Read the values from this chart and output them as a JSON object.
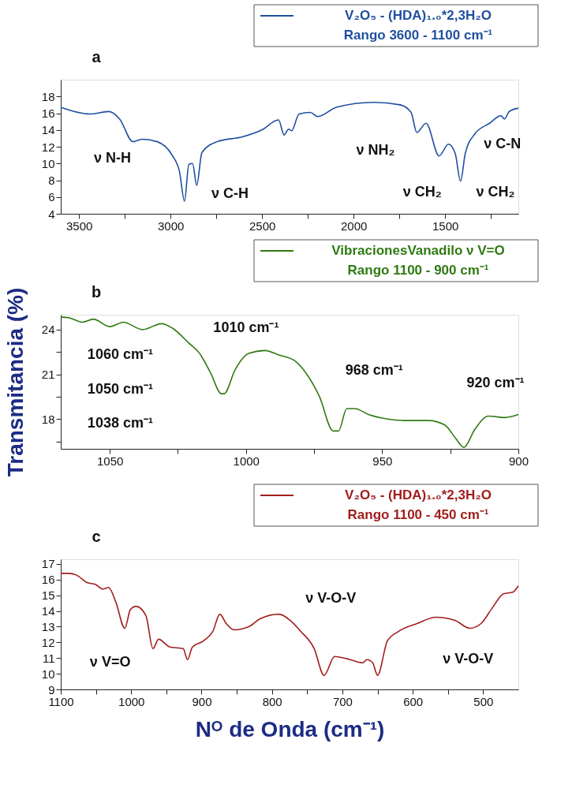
{
  "chart_data": [
    {
      "type": "line",
      "title": "a",
      "legend": "top right",
      "x": [
        3600,
        3441,
        3339,
        3278,
        3206,
        3155,
        3073,
        2992,
        2951,
        2924,
        2900,
        2880,
        2857,
        2829,
        2747,
        2604,
        2502,
        2410,
        2380,
        2355,
        2339,
        2298,
        2237,
        2196,
        2094,
        1890,
        1747,
        1686,
        1655,
        1604,
        1533,
        1482,
        1445,
        1416,
        1390,
        1339,
        1257,
        1196,
        1176,
        1150,
        1100
      ],
      "series": [
        {
          "name": "V₂O₅ - (HDA)₁.₀*2,3H₂O",
          "color": "#1f4f9f",
          "values": [
            16.7,
            15.9,
            16.2,
            15.3,
            12.6,
            12.9,
            12.6,
            11.0,
            9.0,
            5.5,
            9.9,
            10.0,
            7.4,
            11.3,
            12.6,
            13.2,
            14.0,
            15.2,
            13.4,
            14.1,
            13.9,
            15.9,
            16.1,
            15.6,
            16.7,
            17.3,
            17.0,
            16.1,
            13.7,
            14.8,
            10.9,
            12.3,
            11.2,
            7.9,
            11.2,
            13.5,
            14.8,
            15.7,
            15.3,
            16.2,
            16.6
          ]
        }
      ],
      "xlim": [
        3600,
        1100
      ],
      "xticks": [
        3500,
        {
          "value": 3250,
          "label": null
        },
        3000,
        {
          "value": 2750,
          "label": null
        },
        2500,
        {
          "value": 2250,
          "label": null
        },
        2000,
        {
          "value": 1750,
          "label": null
        },
        1500,
        {
          "value": 1250,
          "label": null
        }
      ],
      "ylim": [
        4,
        20
      ],
      "yticks": [
        4,
        6,
        8,
        10,
        12,
        14,
        16,
        18
      ],
      "annotations": [
        "Rango 3600 - 1100 cm⁻¹",
        "ν N-H",
        "ν C-H",
        "ν NH₂",
        "ν CH₂",
        "ν CH₂",
        "ν C-N"
      ]
    },
    {
      "type": "line",
      "title": "b",
      "legend": "top right",
      "ylabel": "Transmitancia (%)",
      "x": [
        1068,
        1065,
        1060,
        1056,
        1050,
        1045,
        1038,
        1031,
        1027,
        1021,
        1017,
        1013,
        1009,
        1008,
        1004,
        999,
        993,
        988,
        982,
        978,
        973,
        968,
        966,
        963,
        960,
        955,
        948,
        941,
        933,
        927,
        923,
        920,
        916,
        911,
        905,
        900
      ],
      "series": [
        {
          "name": "VibracionesVanadilo ν V=O",
          "color": "#2f7a12",
          "values": [
            24.85,
            24.8,
            24.5,
            24.7,
            24.2,
            24.5,
            24.0,
            24.4,
            24.1,
            23.1,
            22.4,
            21.1,
            19.7,
            19.7,
            21.3,
            22.4,
            22.6,
            22.3,
            21.9,
            21.1,
            19.5,
            17.2,
            17.2,
            18.7,
            18.7,
            18.3,
            18.0,
            17.9,
            17.9,
            17.6,
            16.7,
            16.1,
            17.3,
            18.2,
            18.1,
            18.3
          ]
        }
      ],
      "xlim": [
        1068,
        900
      ],
      "xticks": [
        1050,
        {
          "value": 1025,
          "label": null
        },
        1000,
        {
          "value": 975,
          "label": null
        },
        950,
        {
          "value": 925,
          "label": null
        },
        900
      ],
      "ylim": [
        16,
        25
      ],
      "yticks": [
        {
          "value": 16.5,
          "label": null
        },
        18,
        {
          "value": 19.5,
          "label": null
        },
        21,
        {
          "value": 22.5,
          "label": null
        },
        24
      ],
      "annotations": [
        "Rango 1100 - 900 cm⁻¹",
        "1010 cm⁻¹",
        "1060 cm⁻¹",
        "1050 cm⁻¹",
        "1038 cm⁻¹",
        "968 cm⁻¹",
        "920 cm⁻¹"
      ]
    },
    {
      "type": "line",
      "title": "c",
      "legend": "top right",
      "xlabel": "Nᴼ de Onda (cm⁻¹)",
      "x": [
        1100,
        1088,
        1078,
        1062,
        1051,
        1040,
        1032,
        1022,
        1009,
        1001,
        993,
        979,
        969,
        961,
        945,
        926,
        920,
        913,
        897,
        884,
        874,
        865,
        854,
        833,
        817,
        790,
        774,
        759,
        740,
        726,
        711,
        689,
        671,
        665,
        657,
        650,
        636,
        620,
        594,
        567,
        540,
        519,
        503,
        487,
        471,
        458,
        450
      ],
      "series": [
        {
          "name": "V₂O₅ - (HDA)₁.₀*2,3H₂O",
          "color": "#a11d1d",
          "values": [
            16.4,
            16.4,
            16.3,
            15.8,
            15.7,
            15.4,
            15.5,
            14.6,
            12.9,
            14.1,
            14.3,
            13.7,
            11.6,
            12.2,
            11.7,
            11.6,
            10.9,
            11.7,
            12.1,
            12.7,
            13.8,
            13.2,
            12.8,
            13.0,
            13.5,
            13.8,
            13.4,
            12.7,
            11.6,
            9.9,
            11.1,
            10.9,
            10.7,
            10.9,
            10.7,
            9.9,
            12.1,
            12.7,
            13.2,
            13.6,
            13.4,
            12.9,
            13.2,
            14.2,
            15.1,
            15.2,
            15.6
          ]
        }
      ],
      "xlim": [
        1100,
        450
      ],
      "xticks": [
        1100,
        {
          "value": 1050,
          "label": null
        },
        1000,
        {
          "value": 950,
          "label": null
        },
        900,
        {
          "value": 850,
          "label": null
        },
        800,
        {
          "value": 750,
          "label": null
        },
        700,
        {
          "value": 650,
          "label": null
        },
        600,
        {
          "value": 550,
          "label": null
        },
        500
      ],
      "ylim": [
        9,
        17.3
      ],
      "yticks": [
        9,
        10,
        11,
        12,
        13,
        14,
        15,
        16,
        17
      ],
      "annotations": [
        "Rango 1100 - 450 cm⁻¹",
        "ν V-O-V",
        "ν V=O",
        "ν V-O-V"
      ]
    }
  ]
}
